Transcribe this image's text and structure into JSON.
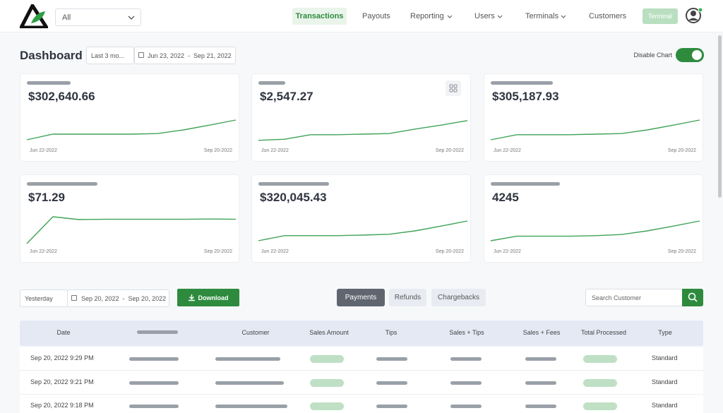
{
  "header": {
    "location_select": "All",
    "nav": [
      "Transactions",
      "Payouts",
      "Reporting",
      "Users",
      "Terminals",
      "Customers"
    ],
    "button": "Terminal"
  },
  "dashboard": {
    "title": "Dashboard",
    "range_select": "Last 3 mo...",
    "date_range": "Jun 23, 2022  -  Sep 21, 2022",
    "toggle_label": "Disable Chart"
  },
  "cards": [
    {
      "value": "$302,640.66",
      "start": "Jun 22-2022",
      "end": "Sep 20-2022",
      "trend": [
        10,
        30,
        30,
        30,
        30,
        32,
        45,
        62,
        80
      ]
    },
    {
      "value": "$2,547.27",
      "start": "Jun 22-2022",
      "end": "Sep 20-2022",
      "trend": [
        8,
        12,
        28,
        28,
        30,
        32,
        48,
        62,
        78
      ]
    },
    {
      "value": "$305,187.93",
      "start": "Jun 22-2022",
      "end": "Sep 20-2022",
      "trend": [
        10,
        28,
        28,
        28,
        30,
        32,
        45,
        62,
        80
      ]
    },
    {
      "value": "$71.29",
      "start": "Jun 22-2022",
      "end": "Sep 20-2022",
      "trend": [
        0,
        95,
        85,
        86,
        86,
        86,
        86,
        87,
        86
      ]
    },
    {
      "value": "$320,045.43",
      "start": "Jun 22-2022",
      "end": "Sep 20-2022",
      "trend": [
        10,
        28,
        28,
        28,
        30,
        33,
        45,
        62,
        80
      ]
    },
    {
      "value": "4245",
      "start": "Jun 22-2022",
      "end": "Sep 20-2022",
      "trend": [
        10,
        26,
        26,
        26,
        28,
        32,
        45,
        62,
        80
      ]
    }
  ],
  "filters": {
    "period_select": "Yesterday",
    "date_range": "Sep 20, 2022  -  Sep 20, 2022",
    "download": "Download",
    "tabs": [
      "Payments",
      "Refunds",
      "Chargebacks"
    ],
    "search_placeholder": "Search Customer"
  },
  "table": {
    "columns": [
      "Date",
      "Customer",
      "Sales Amount",
      "Tips",
      "Sales + Tips",
      "Sales + Fees",
      "Total Processed",
      "Type"
    ],
    "rows": [
      {
        "date": "Sep 20, 2022 9:29 PM",
        "type": "Standard"
      },
      {
        "date": "Sep 20, 2022 9:21 PM",
        "type": "Standard"
      },
      {
        "date": "Sep 20, 2022 9:18 PM",
        "type": "Standard"
      }
    ]
  }
}
